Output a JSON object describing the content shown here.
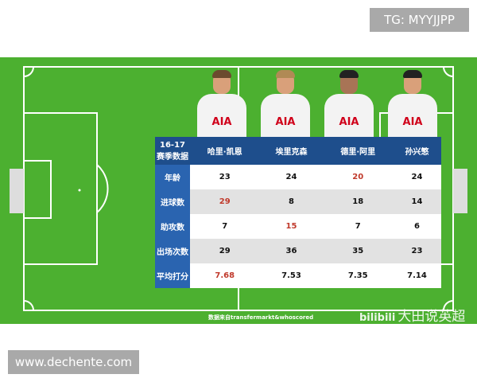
{
  "badges": {
    "tg": "TG: MYYJJPP",
    "site": "www.dechente.com"
  },
  "table": {
    "corner": [
      "16-17",
      "赛季数据"
    ],
    "players": [
      "哈里·凯恩",
      "埃里克森",
      "德里·阿里",
      "孙兴慜"
    ],
    "rows": [
      {
        "label": "年龄",
        "values": [
          "23",
          "24",
          "20",
          "24"
        ],
        "highlight": 2
      },
      {
        "label": "进球数",
        "values": [
          "29",
          "8",
          "18",
          "14"
        ],
        "highlight": 0
      },
      {
        "label": "助攻数",
        "values": [
          "7",
          "15",
          "7",
          "6"
        ],
        "highlight": 1
      },
      {
        "label": "出场次数",
        "values": [
          "29",
          "36",
          "35",
          "23"
        ],
        "highlight": -1
      },
      {
        "label": "平均打分",
        "values": [
          "7.68",
          "7.53",
          "7.35",
          "7.14"
        ],
        "highlight": 0
      }
    ]
  },
  "shirt_sponsor": "AIA",
  "source": "数据来自transfermarkt&whoscored",
  "watermark": {
    "logo": "bilibili",
    "text": "大田说英超"
  },
  "colors": {
    "pitch": "#4cb030",
    "header": "#1e4e8c",
    "highlight": "#c0392b"
  }
}
